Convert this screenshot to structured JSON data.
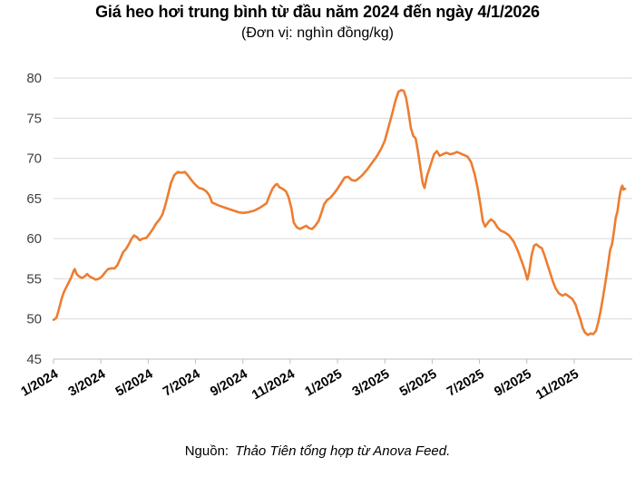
{
  "header": {
    "title": "Giá heo hơi trung bình từ đầu năm 2024 đến ngày 4/1/2026",
    "subtitle": "(Đơn vị: nghìn đồng/kg)"
  },
  "footer": {
    "source_label": "Nguồn:",
    "source_text": "Thảo Tiên tổng hợp từ Anova Feed."
  },
  "chart_data": {
    "type": "line",
    "title": "Giá heo hơi trung bình từ đầu năm 2024 đến ngày 4/1/2026",
    "unit": "nghìn đồng/kg",
    "xlabel": "",
    "ylabel": "",
    "legend": "none",
    "grid": "horizontal",
    "x_unit": "months_since_1/2024",
    "x_range": [
      0,
      24.15
    ],
    "ylim": [
      45,
      80
    ],
    "y_ticks": [
      45,
      50,
      55,
      60,
      65,
      70,
      75,
      80
    ],
    "x_ticks": [
      {
        "m": 0,
        "label": "1/2024"
      },
      {
        "m": 2,
        "label": "3/2024"
      },
      {
        "m": 4,
        "label": "5/2024"
      },
      {
        "m": 6,
        "label": "7/2024"
      },
      {
        "m": 8,
        "label": "9/2024"
      },
      {
        "m": 10,
        "label": "11/2024"
      },
      {
        "m": 12,
        "label": "1/2025"
      },
      {
        "m": 14,
        "label": "3/2025"
      },
      {
        "m": 16,
        "label": "5/2025"
      },
      {
        "m": 18,
        "label": "7/2025"
      },
      {
        "m": 20,
        "label": "9/2025"
      },
      {
        "m": 22,
        "label": "11/2025"
      }
    ],
    "colors": {
      "line": "#ED7D31",
      "gridline": "#D9D9D9",
      "axis": "#BFBFBF",
      "y_label": "#404040",
      "x_label": "#000000"
    },
    "series": [
      {
        "name": "Giá heo hơi trung bình",
        "color": "#ED7D31",
        "points": [
          [
            0.0,
            49.9
          ],
          [
            0.06,
            50.0
          ],
          [
            0.13,
            50.2
          ],
          [
            0.2,
            50.9
          ],
          [
            0.28,
            51.8
          ],
          [
            0.36,
            52.7
          ],
          [
            0.45,
            53.4
          ],
          [
            0.55,
            54.0
          ],
          [
            0.65,
            54.6
          ],
          [
            0.75,
            55.2
          ],
          [
            0.85,
            56.0
          ],
          [
            0.9,
            56.2
          ],
          [
            0.97,
            55.6
          ],
          [
            1.08,
            55.3
          ],
          [
            1.2,
            55.1
          ],
          [
            1.32,
            55.3
          ],
          [
            1.42,
            55.6
          ],
          [
            1.52,
            55.3
          ],
          [
            1.65,
            55.1
          ],
          [
            1.78,
            54.9
          ],
          [
            1.92,
            55.0
          ],
          [
            2.05,
            55.3
          ],
          [
            2.18,
            55.8
          ],
          [
            2.3,
            56.2
          ],
          [
            2.45,
            56.3
          ],
          [
            2.58,
            56.3
          ],
          [
            2.7,
            56.7
          ],
          [
            2.82,
            57.5
          ],
          [
            2.94,
            58.3
          ],
          [
            3.06,
            58.7
          ],
          [
            3.18,
            59.3
          ],
          [
            3.3,
            60.0
          ],
          [
            3.4,
            60.4
          ],
          [
            3.52,
            60.2
          ],
          [
            3.64,
            59.8
          ],
          [
            3.78,
            60.0
          ],
          [
            3.92,
            60.1
          ],
          [
            4.06,
            60.6
          ],
          [
            4.2,
            61.2
          ],
          [
            4.34,
            61.9
          ],
          [
            4.48,
            62.4
          ],
          [
            4.6,
            63.0
          ],
          [
            4.72,
            64.1
          ],
          [
            4.84,
            65.5
          ],
          [
            4.96,
            66.9
          ],
          [
            5.1,
            67.9
          ],
          [
            5.25,
            68.3
          ],
          [
            5.4,
            68.2
          ],
          [
            5.55,
            68.3
          ],
          [
            5.7,
            67.8
          ],
          [
            5.85,
            67.2
          ],
          [
            6.0,
            66.7
          ],
          [
            6.15,
            66.3
          ],
          [
            6.3,
            66.2
          ],
          [
            6.45,
            65.9
          ],
          [
            6.58,
            65.4
          ],
          [
            6.7,
            64.5
          ],
          [
            6.85,
            64.3
          ],
          [
            7.0,
            64.1
          ],
          [
            7.2,
            63.9
          ],
          [
            7.4,
            63.7
          ],
          [
            7.6,
            63.5
          ],
          [
            7.8,
            63.3
          ],
          [
            8.0,
            63.2
          ],
          [
            8.25,
            63.3
          ],
          [
            8.5,
            63.5
          ],
          [
            8.75,
            63.9
          ],
          [
            9.0,
            64.4
          ],
          [
            9.12,
            65.3
          ],
          [
            9.25,
            66.2
          ],
          [
            9.38,
            66.7
          ],
          [
            9.45,
            66.8
          ],
          [
            9.55,
            66.4
          ],
          [
            9.68,
            66.2
          ],
          [
            9.82,
            65.9
          ],
          [
            9.93,
            65.2
          ],
          [
            10.05,
            63.8
          ],
          [
            10.15,
            62.0
          ],
          [
            10.28,
            61.4
          ],
          [
            10.42,
            61.2
          ],
          [
            10.55,
            61.4
          ],
          [
            10.68,
            61.6
          ],
          [
            10.8,
            61.3
          ],
          [
            10.93,
            61.2
          ],
          [
            11.06,
            61.6
          ],
          [
            11.2,
            62.2
          ],
          [
            11.32,
            63.2
          ],
          [
            11.44,
            64.3
          ],
          [
            11.56,
            64.8
          ],
          [
            11.7,
            65.1
          ],
          [
            11.85,
            65.6
          ],
          [
            12.0,
            66.2
          ],
          [
            12.15,
            66.9
          ],
          [
            12.3,
            67.6
          ],
          [
            12.45,
            67.7
          ],
          [
            12.6,
            67.3
          ],
          [
            12.75,
            67.2
          ],
          [
            12.9,
            67.5
          ],
          [
            13.05,
            67.9
          ],
          [
            13.25,
            68.6
          ],
          [
            13.45,
            69.4
          ],
          [
            13.65,
            70.2
          ],
          [
            13.85,
            71.2
          ],
          [
            14.0,
            72.2
          ],
          [
            14.15,
            73.8
          ],
          [
            14.3,
            75.4
          ],
          [
            14.45,
            77.2
          ],
          [
            14.58,
            78.3
          ],
          [
            14.7,
            78.5
          ],
          [
            14.8,
            78.4
          ],
          [
            14.9,
            77.5
          ],
          [
            15.0,
            75.8
          ],
          [
            15.1,
            73.8
          ],
          [
            15.2,
            72.8
          ],
          [
            15.3,
            72.5
          ],
          [
            15.4,
            70.9
          ],
          [
            15.5,
            68.9
          ],
          [
            15.6,
            66.9
          ],
          [
            15.68,
            66.3
          ],
          [
            15.78,
            67.8
          ],
          [
            15.88,
            68.7
          ],
          [
            15.96,
            69.4
          ],
          [
            16.08,
            70.5
          ],
          [
            16.2,
            70.9
          ],
          [
            16.32,
            70.3
          ],
          [
            16.45,
            70.5
          ],
          [
            16.6,
            70.7
          ],
          [
            16.75,
            70.5
          ],
          [
            16.9,
            70.6
          ],
          [
            17.05,
            70.8
          ],
          [
            17.2,
            70.6
          ],
          [
            17.35,
            70.4
          ],
          [
            17.5,
            70.2
          ],
          [
            17.65,
            69.5
          ],
          [
            17.8,
            68.0
          ],
          [
            17.92,
            66.3
          ],
          [
            18.04,
            64.2
          ],
          [
            18.14,
            62.2
          ],
          [
            18.24,
            61.5
          ],
          [
            18.36,
            62.0
          ],
          [
            18.48,
            62.4
          ],
          [
            18.62,
            62.1
          ],
          [
            18.76,
            61.4
          ],
          [
            18.9,
            61.0
          ],
          [
            19.05,
            60.8
          ],
          [
            19.25,
            60.4
          ],
          [
            19.45,
            59.6
          ],
          [
            19.62,
            58.5
          ],
          [
            19.78,
            57.2
          ],
          [
            19.92,
            56.0
          ],
          [
            20.02,
            54.9
          ],
          [
            20.1,
            55.8
          ],
          [
            20.2,
            57.9
          ],
          [
            20.3,
            59.1
          ],
          [
            20.4,
            59.3
          ],
          [
            20.52,
            59.0
          ],
          [
            20.64,
            58.8
          ],
          [
            20.76,
            57.8
          ],
          [
            20.88,
            56.7
          ],
          [
            20.98,
            55.8
          ],
          [
            21.1,
            54.7
          ],
          [
            21.22,
            53.8
          ],
          [
            21.35,
            53.2
          ],
          [
            21.5,
            52.9
          ],
          [
            21.64,
            53.1
          ],
          [
            21.78,
            52.8
          ],
          [
            21.92,
            52.5
          ],
          [
            22.06,
            51.8
          ],
          [
            22.16,
            50.8
          ],
          [
            22.26,
            50.0
          ],
          [
            22.36,
            48.9
          ],
          [
            22.46,
            48.3
          ],
          [
            22.58,
            48.0
          ],
          [
            22.7,
            48.2
          ],
          [
            22.8,
            48.1
          ],
          [
            22.92,
            48.5
          ],
          [
            23.02,
            49.6
          ],
          [
            23.12,
            51.0
          ],
          [
            23.22,
            52.7
          ],
          [
            23.32,
            54.5
          ],
          [
            23.42,
            56.5
          ],
          [
            23.52,
            58.6
          ],
          [
            23.6,
            59.3
          ],
          [
            23.68,
            60.8
          ],
          [
            23.76,
            62.6
          ],
          [
            23.83,
            63.4
          ],
          [
            23.9,
            64.9
          ],
          [
            23.96,
            65.9
          ],
          [
            24.0,
            66.4
          ],
          [
            24.04,
            66.6
          ],
          [
            24.08,
            66.1
          ],
          [
            24.12,
            66.2
          ],
          [
            24.15,
            66.2
          ]
        ]
      }
    ]
  }
}
